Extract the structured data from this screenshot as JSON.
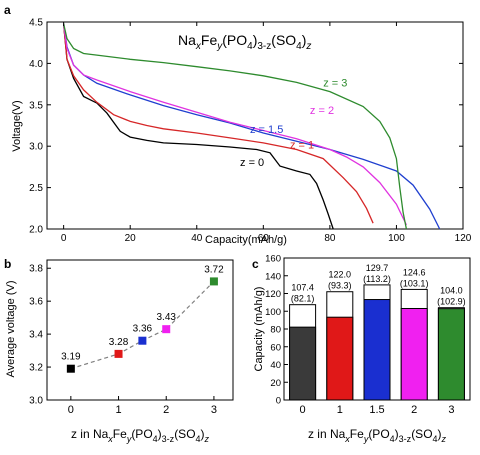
{
  "chart_data": [
    {
      "panel": "a",
      "type": "line",
      "xlabel": "Capacity(mAh/g)",
      "ylabel": "Voltage(V)",
      "xlim": [
        -5,
        120
      ],
      "ylim": [
        2.0,
        4.5
      ],
      "xticks": [
        0,
        20,
        40,
        60,
        80,
        100,
        120
      ],
      "xtick_labels": [
        "0",
        "20",
        "40",
        "60",
        "80",
        "100",
        "120"
      ],
      "yticks": [
        2.0,
        2.5,
        3.0,
        3.5,
        4.0,
        4.5
      ],
      "ytick_labels": [
        "2.0",
        "2.5",
        "3.0",
        "3.5",
        "4.0",
        "4.5"
      ],
      "formula": {
        "base": "Na",
        "x": "x",
        "fe": "Fe",
        "y": "y",
        "po4": "(PO",
        "four1": "4",
        "po4close": ")",
        "sub3z": "3-z",
        "so4": "(SO",
        "four2": "4",
        "so4close": ")",
        "z": "z"
      },
      "series": [
        {
          "name": "z = 0",
          "color": "#000000",
          "x": [
            0,
            1,
            3,
            6,
            10,
            13,
            17,
            20,
            25,
            30,
            40,
            50,
            58,
            62,
            65,
            70,
            74,
            76,
            78,
            79.5,
            81
          ],
          "y": [
            4.48,
            4.05,
            3.82,
            3.6,
            3.52,
            3.4,
            3.18,
            3.11,
            3.07,
            3.04,
            3.02,
            2.99,
            2.96,
            2.92,
            2.76,
            2.7,
            2.66,
            2.55,
            2.35,
            2.18,
            2.0
          ]
        },
        {
          "name": "z = 1",
          "color": "#d62728",
          "x": [
            0,
            1,
            3,
            6,
            10,
            15,
            20,
            25,
            30,
            40,
            50,
            60,
            70,
            78,
            84,
            88,
            91,
            93
          ],
          "y": [
            4.48,
            4.05,
            3.85,
            3.68,
            3.53,
            3.38,
            3.3,
            3.25,
            3.21,
            3.16,
            3.1,
            3.04,
            2.96,
            2.85,
            2.62,
            2.45,
            2.25,
            2.07
          ]
        },
        {
          "name": "z = 1.5",
          "color": "#1f3fcf",
          "x": [
            0,
            1,
            3,
            6,
            10,
            20,
            30,
            40,
            50,
            60,
            70,
            80,
            90,
            100,
            105,
            110,
            113
          ],
          "y": [
            4.48,
            4.2,
            3.98,
            3.86,
            3.76,
            3.62,
            3.49,
            3.38,
            3.28,
            3.16,
            3.06,
            2.96,
            2.84,
            2.7,
            2.53,
            2.24,
            2.0
          ]
        },
        {
          "name": "z = 2",
          "color": "#e033e0",
          "x": [
            0,
            1,
            3,
            6,
            10,
            20,
            30,
            40,
            50,
            60,
            70,
            80,
            85,
            90,
            95,
            100,
            103
          ],
          "y": [
            4.48,
            4.18,
            3.98,
            3.86,
            3.8,
            3.66,
            3.53,
            3.41,
            3.29,
            3.19,
            3.09,
            2.96,
            2.87,
            2.75,
            2.56,
            2.3,
            2.05
          ]
        },
        {
          "name": "z = 3",
          "color": "#2e8b2e",
          "x": [
            0,
            1,
            3,
            6,
            10,
            20,
            30,
            40,
            50,
            60,
            70,
            80,
            90,
            95,
            98,
            100,
            101,
            102,
            103
          ],
          "y": [
            4.48,
            4.3,
            4.18,
            4.12,
            4.1,
            4.05,
            4.01,
            3.96,
            3.91,
            3.85,
            3.77,
            3.66,
            3.48,
            3.3,
            3.1,
            2.85,
            2.5,
            2.2,
            2.0
          ]
        }
      ],
      "labels": [
        {
          "text": "z = 3",
          "color": "#2e8b2e",
          "x": 78,
          "y": 3.72
        },
        {
          "text": "z = 2",
          "color": "#e033e0",
          "x": 74,
          "y": 3.39
        },
        {
          "text": "z = 1.5",
          "color": "#1f3fcf",
          "x": 56,
          "y": 3.16
        },
        {
          "text": "z = 1",
          "color": "#d62728",
          "x": 68,
          "y": 2.97
        },
        {
          "text": "z = 0",
          "color": "#000000",
          "x": 53,
          "y": 2.76
        }
      ]
    },
    {
      "panel": "b",
      "type": "scatter",
      "xlabel": {
        "prefix": "z in Na",
        "x": "x",
        "fe": "Fe",
        "y": "y",
        "po4": "(PO",
        "four1": "4",
        "po4close": ")",
        "sub3z": "3-z",
        "so4": "(SO",
        "four2": "4",
        "so4close": ")",
        "z": "z"
      },
      "ylabel": "Average voltage (V)",
      "xlim": [
        -0.5,
        3.4
      ],
      "ylim": [
        3.0,
        3.85
      ],
      "xticks": [
        0,
        1,
        2,
        3
      ],
      "xtick_labels": [
        "0",
        "1",
        "2",
        "3"
      ],
      "yticks": [
        3.0,
        3.2,
        3.4,
        3.6,
        3.8
      ],
      "ytick_labels": [
        "3.0",
        "3.2",
        "3.4",
        "3.6",
        "3.8"
      ],
      "x": [
        0,
        1,
        1.5,
        2,
        3
      ],
      "y": [
        3.19,
        3.28,
        3.36,
        3.43,
        3.72
      ],
      "point_labels": [
        "3.19",
        "3.28",
        "3.36",
        "3.43",
        "3.72"
      ],
      "colors": [
        "#000000",
        "#e01818",
        "#1a2fd0",
        "#f020f0",
        "#2e8b2e"
      ]
    },
    {
      "panel": "c",
      "type": "bar",
      "xlabel": {
        "prefix": "z in Na",
        "x": "x",
        "fe": "Fe",
        "y": "y",
        "po4": "(PO",
        "four1": "4",
        "po4close": ")",
        "sub3z": "3-z",
        "so4": "(SO",
        "four2": "4",
        "so4close": ")",
        "z": "z"
      },
      "ylabel": "Capacity  (mAh/g)",
      "ylim": [
        0,
        160
      ],
      "yticks": [
        0,
        20,
        40,
        60,
        80,
        100,
        120,
        140,
        160
      ],
      "ytick_labels": [
        "0",
        "20",
        "40",
        "60",
        "80",
        "100",
        "120",
        "140",
        "160"
      ],
      "categories": [
        "0",
        "1",
        "1.5",
        "2",
        "3"
      ],
      "total_values": [
        107.4,
        122.0,
        129.7,
        124.6,
        104.0
      ],
      "fill_values": [
        82.1,
        93.3,
        113.2,
        103.1,
        102.9
      ],
      "total_labels": [
        "107.4",
        "122.0",
        "129.7",
        "124.6",
        "104.0"
      ],
      "fill_labels": [
        "(82.1)",
        "(93.3)",
        "(113.2)",
        "(103.1)",
        "(102.9)"
      ],
      "colors": [
        "#3a3a3a",
        "#e01818",
        "#1a2fd0",
        "#f020f0",
        "#2e8b2e"
      ]
    }
  ],
  "panel_letters": {
    "a": "a",
    "b": "b",
    "c": "c"
  }
}
